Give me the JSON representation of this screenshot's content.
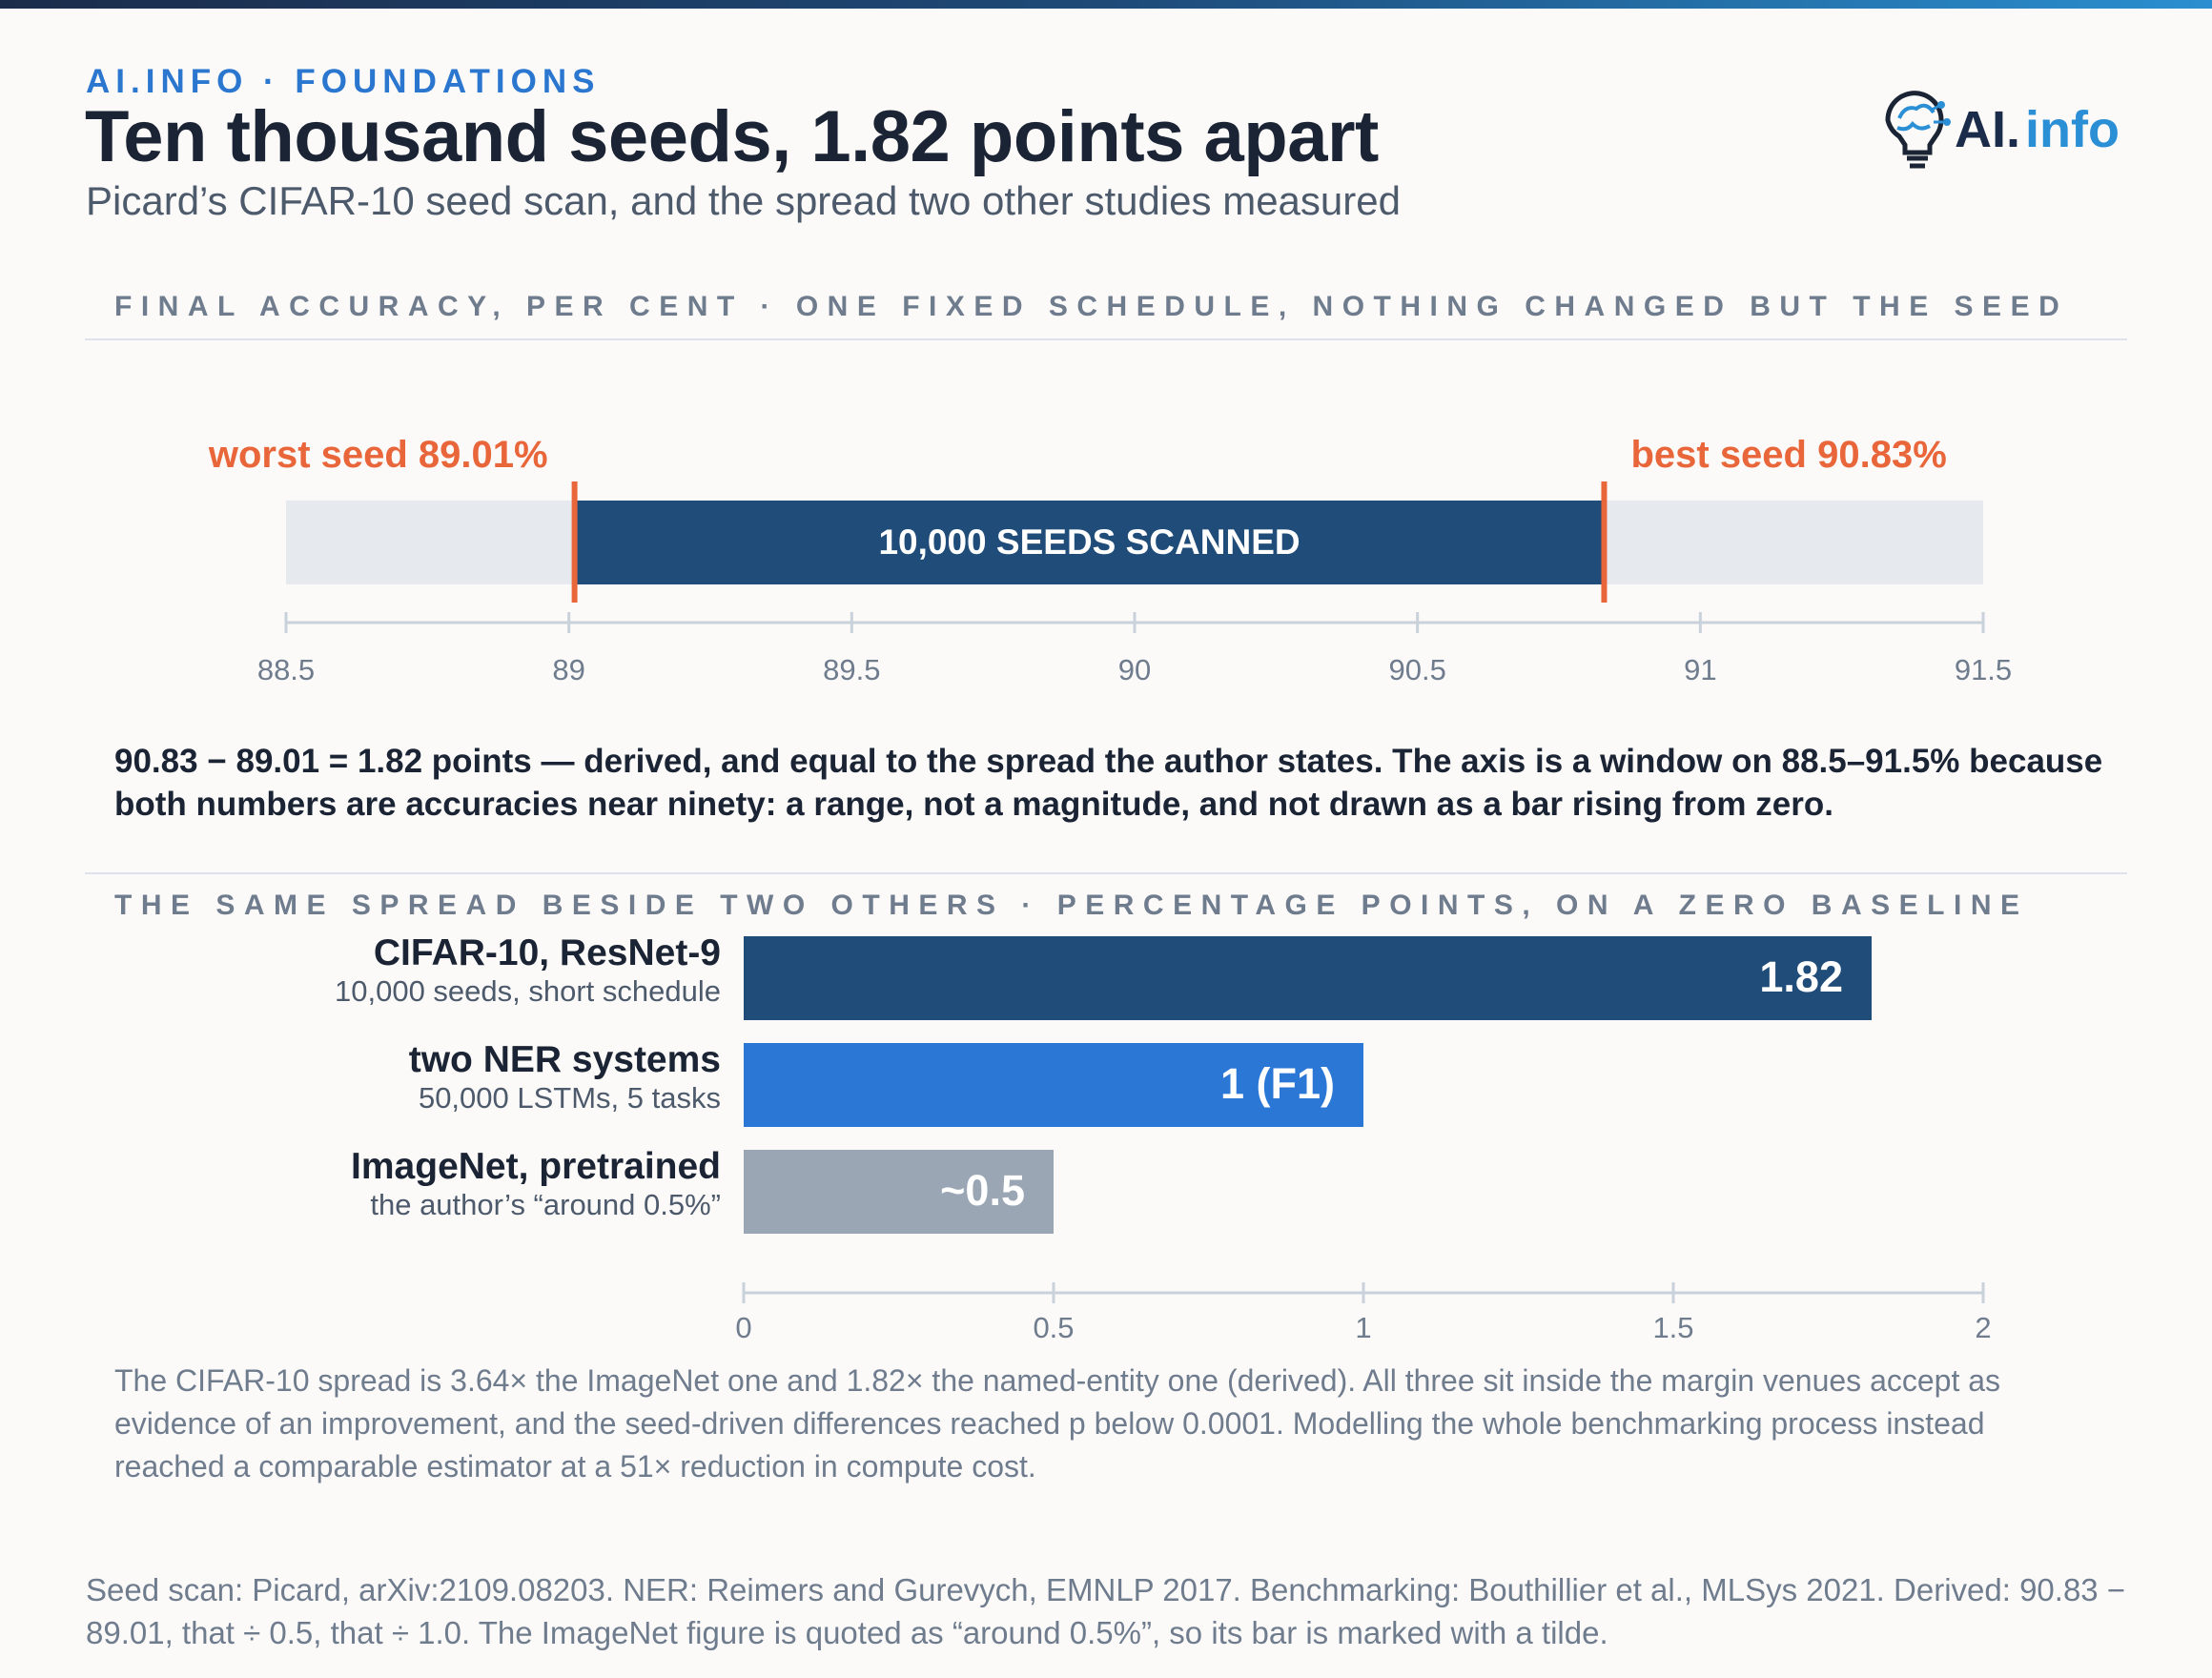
{
  "header": {
    "kicker": "AI.INFO · FOUNDATIONS",
    "title": "Ten thousand seeds, 1.82 points apart",
    "subtitle": "Picard’s CIFAR-10 seed scan, and the spread two other studies measured",
    "logo_text_main": "AI.",
    "logo_text_accent": "info"
  },
  "colors": {
    "accent_orange": "#e8663a",
    "navy": "#1f4c78",
    "blue": "#2b77d6",
    "gray": "#9aa6b4",
    "track": "#e6e9ee"
  },
  "section1": {
    "heading": "FINAL ACCURACY, PER CENT · ONE FIXED SCHEDULE, NOTHING CHANGED BUT THE SEED"
  },
  "section2": {
    "heading": "THE SAME SPREAD BESIDE TWO OTHERS · PERCENTAGE POINTS, ON A ZERO BASELINE"
  },
  "note_derived": "90.83 − 89.01 = 1.82 points — derived, and equal to the spread the author states. The axis is a window on 88.5–91.5% because both numbers are accuracies near ninety: a range, not a magnitude, and not drawn as a bar rising from zero.",
  "note_compare": "The CIFAR-10 spread is 3.64× the ImageNet one and 1.82× the named-entity one (derived). All three sit inside the margin venues accept as evidence of an improvement, and the seed-driven differences reached p below 0.0001. Modelling the whole benchmarking process instead reached a comparable estimator at a 51× reduction in compute cost.",
  "footer": "Seed scan: Picard, arXiv:2109.08203. NER: Reimers and Gurevych, EMNLP 2017. Benchmarking: Bouthillier et al., MLSys 2021. Derived: 90.83 − 89.01, that ÷ 0.5, that ÷ 1.0. The ImageNet figure is quoted as “around 0.5%”, so its bar is marked with a tilde.",
  "chart_data": [
    {
      "type": "range",
      "xlim": [
        88.5,
        91.5
      ],
      "ticks": [
        88.5,
        89,
        89.5,
        90,
        90.5,
        91,
        91.5
      ],
      "tick_labels": [
        "88.5",
        "89",
        "89.5",
        "90",
        "90.5",
        "91",
        "91.5"
      ],
      "range": {
        "low": 89.01,
        "high": 90.83,
        "label": "10,000 SEEDS SCANNED"
      },
      "low_label": "worst seed 89.01%",
      "high_label": "best seed 90.83%"
    },
    {
      "type": "bar",
      "orientation": "horizontal",
      "xlim": [
        0,
        2
      ],
      "ticks": [
        0,
        0.5,
        1,
        1.5,
        2
      ],
      "tick_labels": [
        "0",
        "0.5",
        "1",
        "1.5",
        "2"
      ],
      "bars": [
        {
          "name": "CIFAR-10, ResNet-9",
          "sub": "10,000 seeds, short schedule",
          "value": 1.82,
          "value_label": "1.82",
          "color": "#1f4c78"
        },
        {
          "name": "two NER systems",
          "sub": "50,000 LSTMs, 5 tasks",
          "value": 1.0,
          "value_label": "1 (F1)",
          "color": "#2b77d6"
        },
        {
          "name": "ImageNet, pretrained",
          "sub": "the author’s “around 0.5%”",
          "value": 0.5,
          "value_label": "~0.5",
          "color": "#9aa6b4"
        }
      ]
    }
  ]
}
